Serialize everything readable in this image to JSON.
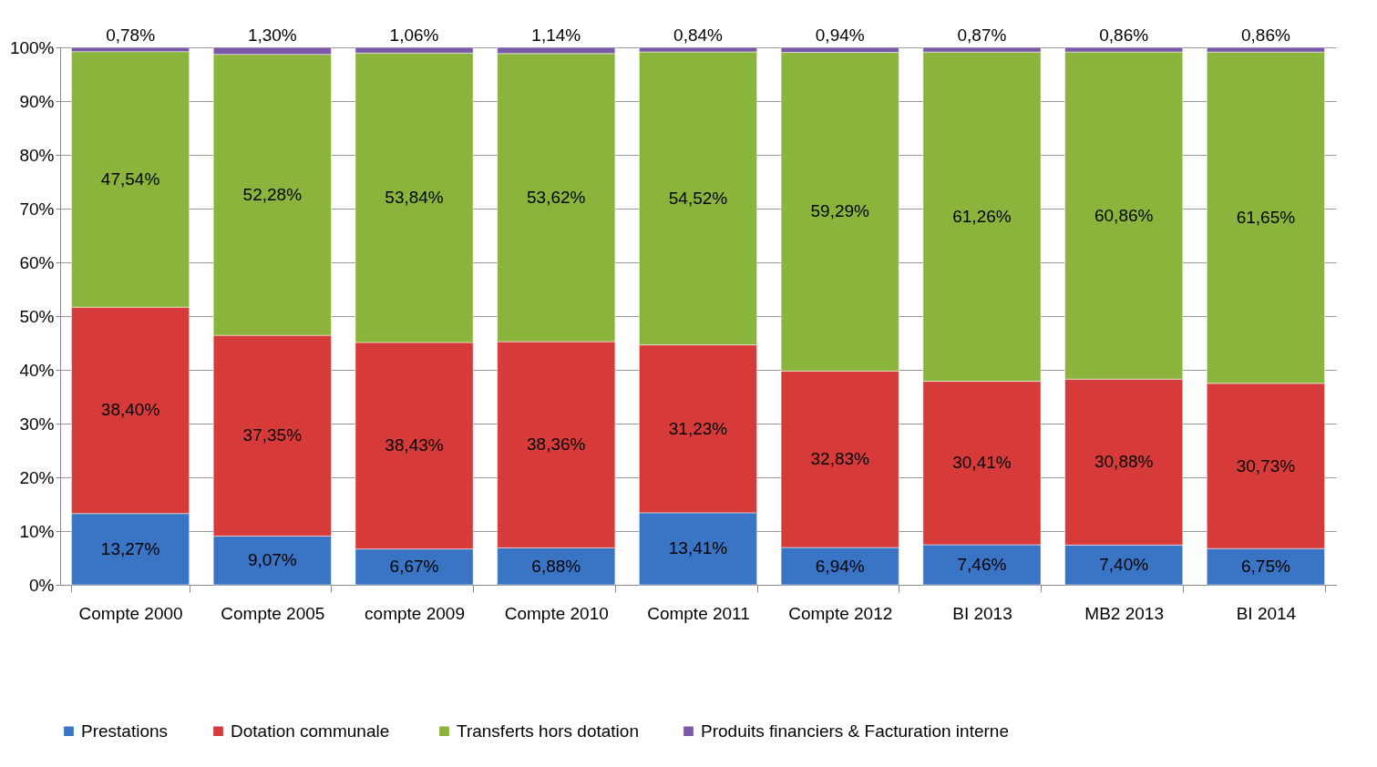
{
  "chart_data": {
    "type": "bar",
    "stacked": true,
    "categories": [
      "Compte 2000",
      "Compte 2005",
      "compte 2009",
      "Compte 2010",
      "Compte 2011",
      "Compte 2012",
      "BI 2013",
      "MB2 2013",
      "BI 2014"
    ],
    "ylim": [
      0,
      100
    ],
    "yticks": [
      {
        "value": 0,
        "label": "0%"
      },
      {
        "value": 10,
        "label": "10%"
      },
      {
        "value": 20,
        "label": "20%"
      },
      {
        "value": 30,
        "label": "30%"
      },
      {
        "value": 40,
        "label": "40%"
      },
      {
        "value": 50,
        "label": "50%"
      },
      {
        "value": 60,
        "label": "60%"
      },
      {
        "value": 70,
        "label": "70%"
      },
      {
        "value": 80,
        "label": "80%"
      },
      {
        "value": 90,
        "label": "90%"
      },
      {
        "value": 100,
        "label": "100%"
      }
    ],
    "grid": "y",
    "legend": "bottom",
    "series": [
      {
        "name": "Prestations",
        "color": "#3a74c4",
        "values": [
          13.27,
          9.07,
          6.67,
          6.88,
          13.41,
          6.94,
          7.46,
          7.4,
          6.75
        ],
        "value_labels": [
          "13,27%",
          "9,07%",
          "6,67%",
          "6,88%",
          "13,41%",
          "6,94%",
          "7,46%",
          "7,40%",
          "6,75%"
        ]
      },
      {
        "name": "Dotation  communale",
        "color": "#d63b3a",
        "values": [
          38.4,
          37.35,
          38.43,
          38.36,
          31.23,
          32.83,
          30.41,
          30.88,
          30.73
        ],
        "value_labels": [
          "38,40%",
          "37,35%",
          "38,43%",
          "38,36%",
          "31,23%",
          "32,83%",
          "30,41%",
          "30,88%",
          "30,73%"
        ]
      },
      {
        "name": "Transferts hors dotation",
        "color": "#8ab43c",
        "values": [
          47.54,
          52.28,
          53.84,
          53.62,
          54.52,
          59.29,
          61.26,
          60.86,
          61.65
        ],
        "value_labels": [
          "47,54%",
          "52,28%",
          "53,84%",
          "53,62%",
          "54,52%",
          "59,29%",
          "61,26%",
          "60,86%",
          "61,65%"
        ]
      },
      {
        "name": "Produits financiers & Facturation interne",
        "color": "#7a5aa6",
        "values": [
          0.78,
          1.3,
          1.06,
          1.14,
          0.84,
          0.94,
          0.87,
          0.86,
          0.86
        ],
        "value_labels": [
          "0,78%",
          "1,30%",
          "1,06%",
          "1,14%",
          "0,84%",
          "0,94%",
          "0,87%",
          "0,86%",
          "0,86%"
        ]
      }
    ]
  }
}
